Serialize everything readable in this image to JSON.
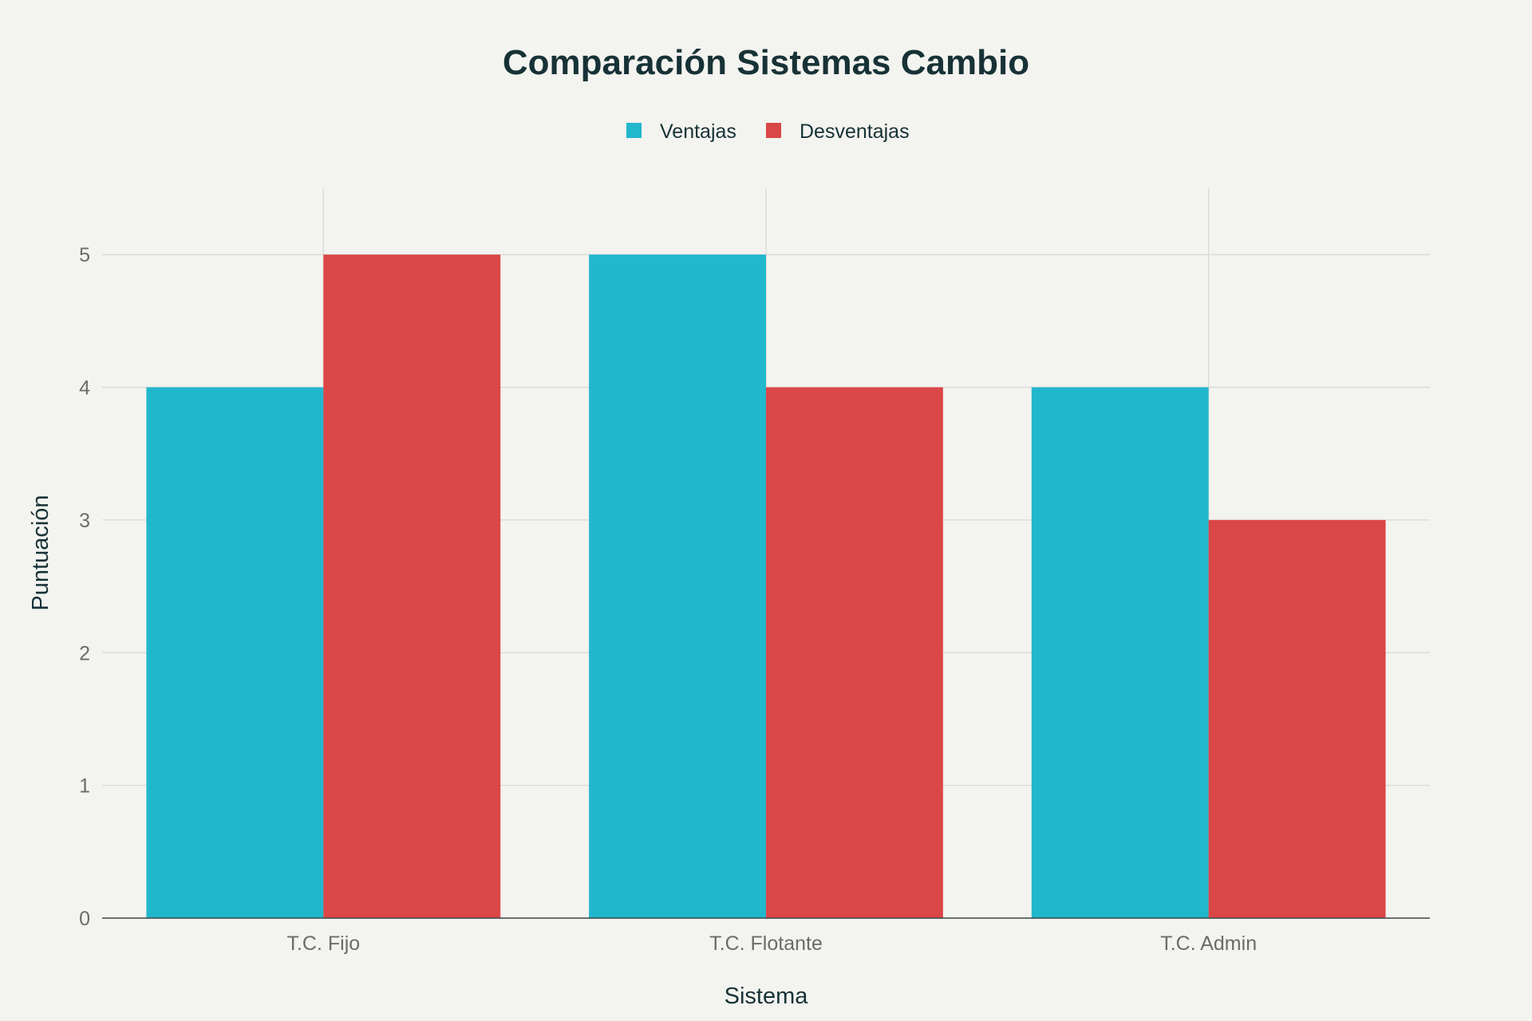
{
  "chart_data": {
    "type": "bar",
    "title": "Comparación Sistemas Cambio",
    "xlabel": "Sistema",
    "ylabel": "Puntuación",
    "categories": [
      "T.C. Fijo",
      "T.C. Flotante",
      "T.C. Admin"
    ],
    "series": [
      {
        "name": "Ventajas",
        "values": [
          4,
          5,
          4
        ],
        "color": "#21b7cd"
      },
      {
        "name": "Desventajas",
        "values": [
          5,
          4,
          3
        ],
        "color": "#db4647"
      }
    ],
    "ylim": [
      0,
      5.5
    ],
    "yticks": [
      0,
      1,
      2,
      3,
      4,
      5
    ],
    "grid": true,
    "legend_position": "top-center"
  }
}
